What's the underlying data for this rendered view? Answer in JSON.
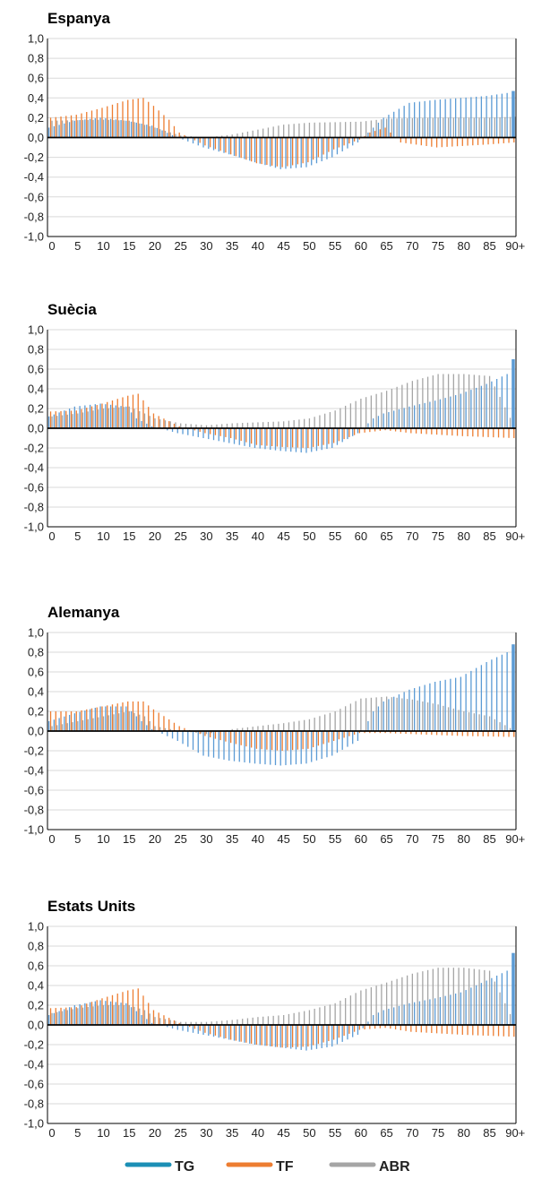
{
  "colors": {
    "TG": "#5b9bd5",
    "TF": "#ed7d31",
    "ABR": "#a5a5a5",
    "TG_legend": "#1b8fb5",
    "grid": "#d9d9d9"
  },
  "x_ticks": [
    "0",
    "5",
    "10",
    "15",
    "20",
    "25",
    "30",
    "35",
    "40",
    "45",
    "50",
    "55",
    "60",
    "65",
    "70",
    "75",
    "80",
    "85",
    "90+"
  ],
  "y_ticks": [
    "1,0",
    "0,8",
    "0,6",
    "0,4",
    "0,2",
    "0,0",
    "-0,2",
    "-0,4",
    "-0,6",
    "-0,8",
    "-1,0"
  ],
  "legend": [
    {
      "key": "TG",
      "label": "TG"
    },
    {
      "key": "TF",
      "label": "TF"
    },
    {
      "key": "ABR",
      "label": "ABR"
    }
  ],
  "chart_data": [
    {
      "type": "bar",
      "title": "Espanya",
      "ylim": [
        -1,
        1
      ],
      "x_range": "0-90+ (age)",
      "series": [
        {
          "name": "TG",
          "anchors": [
            [
              0,
              0.1
            ],
            [
              5,
              0.17
            ],
            [
              10,
              0.2
            ],
            [
              15,
              0.17
            ],
            [
              20,
              0.12
            ],
            [
              25,
              0.0
            ],
            [
              30,
              -0.1
            ],
            [
              35,
              -0.17
            ],
            [
              40,
              -0.25
            ],
            [
              45,
              -0.32
            ],
            [
              50,
              -0.3
            ],
            [
              55,
              -0.2
            ],
            [
              60,
              -0.05
            ],
            [
              62,
              0.05
            ],
            [
              65,
              0.2
            ],
            [
              70,
              0.35
            ],
            [
              75,
              0.38
            ],
            [
              80,
              0.4
            ],
            [
              85,
              0.42
            ],
            [
              89,
              0.45
            ],
            [
              90,
              0.47
            ]
          ]
        },
        {
          "name": "TF",
          "anchors": [
            [
              0,
              0.2
            ],
            [
              5,
              0.23
            ],
            [
              10,
              0.3
            ],
            [
              15,
              0.38
            ],
            [
              18,
              0.4
            ],
            [
              20,
              0.32
            ],
            [
              23,
              0.18
            ],
            [
              25,
              0.05
            ],
            [
              30,
              -0.08
            ],
            [
              35,
              -0.17
            ],
            [
              40,
              -0.26
            ],
            [
              45,
              -0.3
            ],
            [
              50,
              -0.25
            ],
            [
              55,
              -0.12
            ],
            [
              60,
              -0.02
            ],
            [
              62,
              0.05
            ],
            [
              65,
              0.1
            ],
            [
              68,
              -0.05
            ],
            [
              75,
              -0.1
            ],
            [
              85,
              -0.07
            ],
            [
              90,
              -0.05
            ]
          ]
        },
        {
          "name": "ABR",
          "anchors": [
            [
              0,
              0.17
            ],
            [
              10,
              0.18
            ],
            [
              15,
              0.17
            ],
            [
              20,
              0.1
            ],
            [
              25,
              0.02
            ],
            [
              30,
              0.0
            ],
            [
              35,
              0.03
            ],
            [
              40,
              0.08
            ],
            [
              45,
              0.13
            ],
            [
              50,
              0.15
            ],
            [
              60,
              0.16
            ],
            [
              65,
              0.19
            ],
            [
              75,
              0.2
            ],
            [
              85,
              0.2
            ],
            [
              90,
              0.21
            ]
          ]
        }
      ]
    },
    {
      "type": "bar",
      "title": "Suècia",
      "ylim": [
        -1,
        1
      ],
      "x_range": "0-90+ (age)",
      "series": [
        {
          "name": "TG",
          "anchors": [
            [
              0,
              0.12
            ],
            [
              5,
              0.22
            ],
            [
              10,
              0.25
            ],
            [
              15,
              0.22
            ],
            [
              17,
              0.1
            ],
            [
              20,
              0.02
            ],
            [
              25,
              -0.05
            ],
            [
              30,
              -0.1
            ],
            [
              35,
              -0.15
            ],
            [
              40,
              -0.2
            ],
            [
              45,
              -0.23
            ],
            [
              50,
              -0.25
            ],
            [
              55,
              -0.2
            ],
            [
              60,
              -0.05
            ],
            [
              63,
              0.1
            ],
            [
              65,
              0.15
            ],
            [
              70,
              0.22
            ],
            [
              75,
              0.28
            ],
            [
              80,
              0.35
            ],
            [
              85,
              0.45
            ],
            [
              89,
              0.55
            ],
            [
              90,
              0.7
            ]
          ]
        },
        {
          "name": "TF",
          "anchors": [
            [
              0,
              0.17
            ],
            [
              5,
              0.18
            ],
            [
              10,
              0.25
            ],
            [
              15,
              0.33
            ],
            [
              17,
              0.35
            ],
            [
              20,
              0.15
            ],
            [
              25,
              0.02
            ],
            [
              30,
              -0.05
            ],
            [
              35,
              -0.1
            ],
            [
              40,
              -0.17
            ],
            [
              45,
              -0.19
            ],
            [
              50,
              -0.2
            ],
            [
              55,
              -0.15
            ],
            [
              60,
              -0.05
            ],
            [
              65,
              -0.02
            ],
            [
              70,
              -0.05
            ],
            [
              80,
              -0.08
            ],
            [
              90,
              -0.1
            ]
          ]
        },
        {
          "name": "ABR",
          "anchors": [
            [
              0,
              0.12
            ],
            [
              5,
              0.15
            ],
            [
              10,
              0.2
            ],
            [
              15,
              0.22
            ],
            [
              18,
              0.15
            ],
            [
              20,
              0.1
            ],
            [
              25,
              0.05
            ],
            [
              30,
              0.03
            ],
            [
              35,
              0.05
            ],
            [
              40,
              0.06
            ],
            [
              45,
              0.07
            ],
            [
              50,
              0.1
            ],
            [
              55,
              0.18
            ],
            [
              60,
              0.3
            ],
            [
              65,
              0.38
            ],
            [
              70,
              0.48
            ],
            [
              75,
              0.55
            ],
            [
              80,
              0.55
            ],
            [
              85,
              0.53
            ],
            [
              90,
              0.0
            ]
          ]
        }
      ]
    },
    {
      "type": "bar",
      "title": "Alemanya",
      "ylim": [
        -1,
        1
      ],
      "x_range": "0-90+ (age)",
      "series": [
        {
          "name": "TG",
          "anchors": [
            [
              0,
              0.1
            ],
            [
              5,
              0.18
            ],
            [
              10,
              0.25
            ],
            [
              15,
              0.25
            ],
            [
              18,
              0.1
            ],
            [
              20,
              0.02
            ],
            [
              25,
              -0.1
            ],
            [
              30,
              -0.25
            ],
            [
              35,
              -0.3
            ],
            [
              40,
              -0.33
            ],
            [
              45,
              -0.35
            ],
            [
              50,
              -0.33
            ],
            [
              55,
              -0.25
            ],
            [
              60,
              -0.1
            ],
            [
              63,
              0.2
            ],
            [
              65,
              0.3
            ],
            [
              70,
              0.42
            ],
            [
              75,
              0.5
            ],
            [
              80,
              0.55
            ],
            [
              85,
              0.7
            ],
            [
              89,
              0.8
            ],
            [
              90,
              0.88
            ]
          ]
        },
        {
          "name": "TF",
          "anchors": [
            [
              0,
              0.2
            ],
            [
              5,
              0.2
            ],
            [
              10,
              0.25
            ],
            [
              15,
              0.3
            ],
            [
              18,
              0.3
            ],
            [
              20,
              0.22
            ],
            [
              25,
              0.05
            ],
            [
              30,
              -0.05
            ],
            [
              35,
              -0.12
            ],
            [
              40,
              -0.18
            ],
            [
              45,
              -0.2
            ],
            [
              50,
              -0.18
            ],
            [
              55,
              -0.1
            ],
            [
              60,
              -0.02
            ],
            [
              65,
              -0.02
            ],
            [
              80,
              -0.05
            ],
            [
              90,
              -0.06
            ]
          ]
        },
        {
          "name": "ABR",
          "anchors": [
            [
              0,
              0.05
            ],
            [
              5,
              0.1
            ],
            [
              10,
              0.15
            ],
            [
              15,
              0.2
            ],
            [
              18,
              0.15
            ],
            [
              20,
              0.05
            ],
            [
              25,
              0.0
            ],
            [
              30,
              -0.03
            ],
            [
              35,
              0.02
            ],
            [
              40,
              0.05
            ],
            [
              45,
              0.08
            ],
            [
              50,
              0.12
            ],
            [
              55,
              0.2
            ],
            [
              60,
              0.33
            ],
            [
              65,
              0.35
            ],
            [
              70,
              0.32
            ],
            [
              75,
              0.27
            ],
            [
              80,
              0.2
            ],
            [
              85,
              0.15
            ],
            [
              90,
              0.0
            ]
          ]
        }
      ]
    },
    {
      "type": "bar",
      "title": "Estats Units",
      "ylim": [
        -1,
        1
      ],
      "x_range": "0-90+ (age)",
      "series": [
        {
          "name": "TG",
          "anchors": [
            [
              0,
              0.1
            ],
            [
              5,
              0.2
            ],
            [
              10,
              0.25
            ],
            [
              15,
              0.22
            ],
            [
              18,
              0.1
            ],
            [
              20,
              0.02
            ],
            [
              25,
              -0.05
            ],
            [
              30,
              -0.1
            ],
            [
              35,
              -0.15
            ],
            [
              40,
              -0.2
            ],
            [
              45,
              -0.23
            ],
            [
              50,
              -0.26
            ],
            [
              55,
              -0.22
            ],
            [
              60,
              -0.1
            ],
            [
              63,
              0.1
            ],
            [
              65,
              0.15
            ],
            [
              70,
              0.22
            ],
            [
              75,
              0.27
            ],
            [
              80,
              0.33
            ],
            [
              85,
              0.45
            ],
            [
              89,
              0.55
            ],
            [
              90,
              0.73
            ]
          ]
        },
        {
          "name": "TF",
          "anchors": [
            [
              0,
              0.17
            ],
            [
              5,
              0.18
            ],
            [
              10,
              0.27
            ],
            [
              15,
              0.35
            ],
            [
              17,
              0.37
            ],
            [
              20,
              0.15
            ],
            [
              25,
              0.02
            ],
            [
              30,
              -0.08
            ],
            [
              35,
              -0.15
            ],
            [
              40,
              -0.2
            ],
            [
              45,
              -0.23
            ],
            [
              50,
              -0.22
            ],
            [
              55,
              -0.15
            ],
            [
              60,
              -0.05
            ],
            [
              65,
              -0.03
            ],
            [
              70,
              -0.07
            ],
            [
              80,
              -0.1
            ],
            [
              90,
              -0.12
            ]
          ]
        },
        {
          "name": "ABR",
          "anchors": [
            [
              0,
              0.12
            ],
            [
              5,
              0.17
            ],
            [
              10,
              0.2
            ],
            [
              15,
              0.2
            ],
            [
              18,
              0.15
            ],
            [
              20,
              0.08
            ],
            [
              25,
              0.03
            ],
            [
              30,
              0.03
            ],
            [
              35,
              0.05
            ],
            [
              40,
              0.08
            ],
            [
              45,
              0.1
            ],
            [
              50,
              0.15
            ],
            [
              55,
              0.22
            ],
            [
              60,
              0.35
            ],
            [
              65,
              0.43
            ],
            [
              70,
              0.52
            ],
            [
              75,
              0.58
            ],
            [
              80,
              0.58
            ],
            [
              85,
              0.55
            ],
            [
              90,
              0.0
            ]
          ]
        }
      ]
    }
  ]
}
